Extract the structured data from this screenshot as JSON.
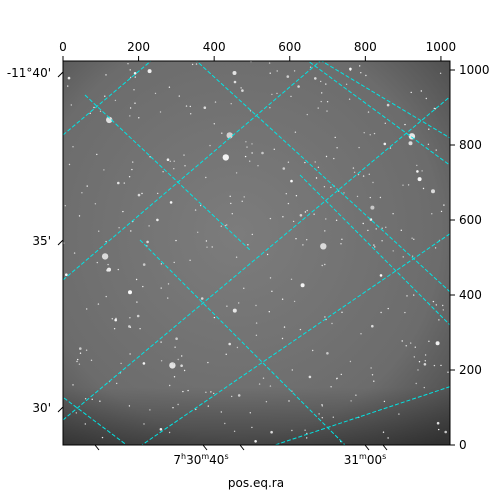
{
  "chart_data": {
    "type": "image",
    "colormap": "gray",
    "grid_color": "#00e5e5",
    "xlabel": "pos.eq.ra",
    "pixel_x_axis": {
      "range": [
        0,
        1024
      ],
      "ticks": [
        0,
        200,
        400,
        600,
        800,
        1000
      ]
    },
    "pixel_y_axis": {
      "range": [
        0,
        1024
      ],
      "ticks": [
        0,
        200,
        400,
        600,
        800,
        1000
      ]
    },
    "ra_ticks": [
      {
        "label_main": "7",
        "sup1": "h",
        "mid": "30",
        "sup2": "m",
        "tail": "40",
        "sup3": "s"
      },
      {
        "label_main": "31",
        "sup1": "m",
        "mid": "00",
        "sup2": "s",
        "tail": "",
        "sup3": ""
      }
    ],
    "dec_ticks": [
      "-11°40'",
      "35'",
      "30'"
    ]
  }
}
